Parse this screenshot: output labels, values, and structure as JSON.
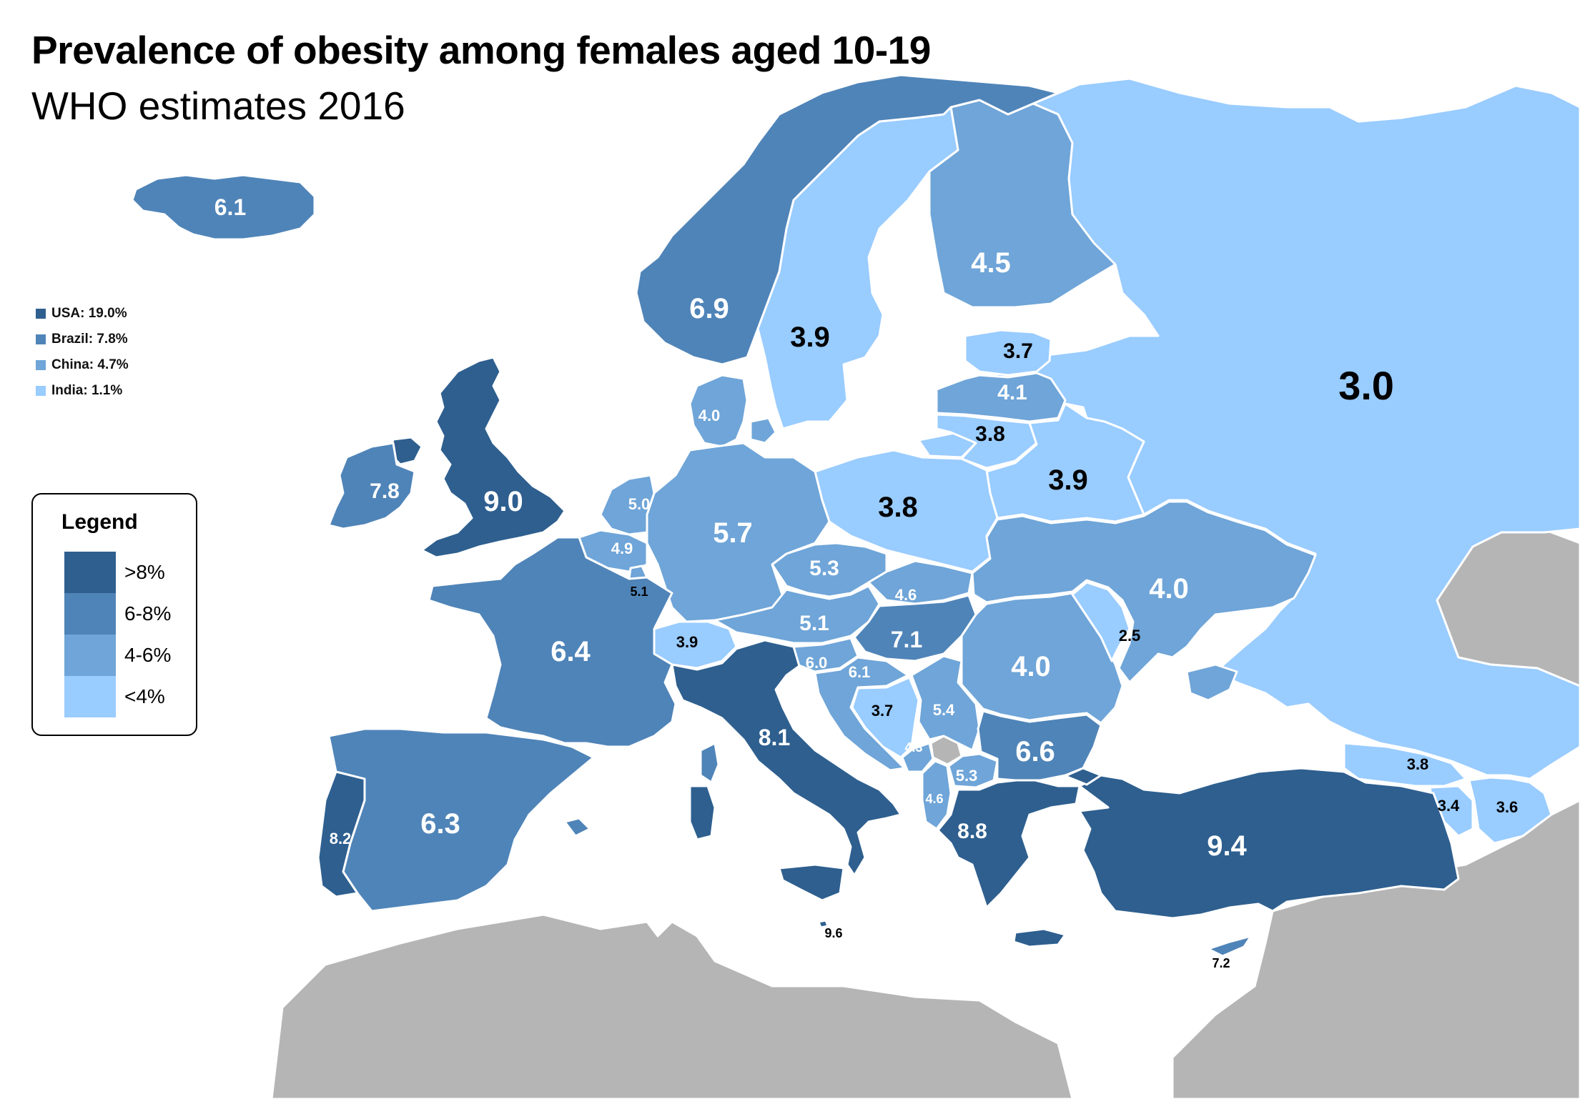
{
  "title": "Prevalence of obesity among females aged 10-19",
  "subtitle": "WHO estimates 2016",
  "reference": [
    {
      "label": "USA: 19.0%",
      "color": "#2e5f8f"
    },
    {
      "label": "Brazil: 7.8%",
      "color": "#4f84b8"
    },
    {
      "label": "China: 4.7%",
      "color": "#6fa5d8"
    },
    {
      "label": "India: 1.1%",
      "color": "#99ccff"
    }
  ],
  "legend": {
    "title": "Legend",
    "items": [
      {
        "label": ">8%",
        "color": "#2e5f8f"
      },
      {
        "label": "6-8%",
        "color": "#4f84b8"
      },
      {
        "label": "4-6%",
        "color": "#6fa5d8"
      },
      {
        "label": "<4%",
        "color": "#99ccff"
      }
    ]
  },
  "countries": [
    {
      "id": "iceland",
      "value": "6.1"
    },
    {
      "id": "norway",
      "value": "6.9"
    },
    {
      "id": "sweden",
      "value": "3.9"
    },
    {
      "id": "finland",
      "value": "4.5"
    },
    {
      "id": "russia",
      "value": "3.0"
    },
    {
      "id": "estonia",
      "value": "3.7"
    },
    {
      "id": "latvia",
      "value": "4.1"
    },
    {
      "id": "lithuania",
      "value": "3.8"
    },
    {
      "id": "belarus",
      "value": "3.9"
    },
    {
      "id": "poland",
      "value": "3.8"
    },
    {
      "id": "ukraine",
      "value": "4.0"
    },
    {
      "id": "moldova",
      "value": "2.5"
    },
    {
      "id": "romania",
      "value": "4.0"
    },
    {
      "id": "bulgaria",
      "value": "6.6"
    },
    {
      "id": "turkey",
      "value": "9.4"
    },
    {
      "id": "georgia",
      "value": "3.8"
    },
    {
      "id": "armenia",
      "value": "3.4"
    },
    {
      "id": "azerbaijan",
      "value": "3.6"
    },
    {
      "id": "cyprus",
      "value": "7.2"
    },
    {
      "id": "greece",
      "value": "8.8"
    },
    {
      "id": "albania",
      "value": "4.6"
    },
    {
      "id": "north-macedonia",
      "value": "5.3"
    },
    {
      "id": "montenegro",
      "value": "4.3"
    },
    {
      "id": "serbia",
      "value": "5.4"
    },
    {
      "id": "bosnia",
      "value": "3.7"
    },
    {
      "id": "croatia",
      "value": "6.1"
    },
    {
      "id": "slovenia",
      "value": "6.0"
    },
    {
      "id": "hungary",
      "value": "7.1"
    },
    {
      "id": "slovakia",
      "value": "4.6"
    },
    {
      "id": "czechia",
      "value": "5.3"
    },
    {
      "id": "austria",
      "value": "5.1"
    },
    {
      "id": "switzerland",
      "value": "3.9"
    },
    {
      "id": "italy",
      "value": "8.1"
    },
    {
      "id": "malta",
      "value": "9.6"
    },
    {
      "id": "germany",
      "value": "5.7"
    },
    {
      "id": "denmark",
      "value": "4.0"
    },
    {
      "id": "netherlands",
      "value": "5.0"
    },
    {
      "id": "belgium",
      "value": "4.9"
    },
    {
      "id": "luxembourg",
      "value": "5.1"
    },
    {
      "id": "france",
      "value": "6.4"
    },
    {
      "id": "spain",
      "value": "6.3"
    },
    {
      "id": "portugal",
      "value": "8.2"
    },
    {
      "id": "uk",
      "value": "9.0"
    },
    {
      "id": "ireland",
      "value": "7.8"
    }
  ],
  "colors": {
    "gt8": "#2e5f8f",
    "c6to8": "#4f84b8",
    "c4to6": "#6fa5d8",
    "lt4": "#99ccff",
    "no_data": "#b5b5b5",
    "sea": "#ffffff"
  }
}
